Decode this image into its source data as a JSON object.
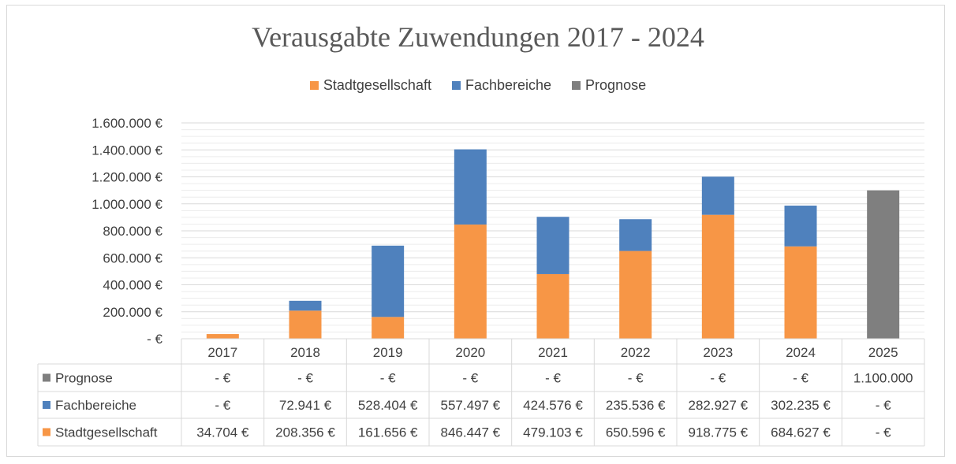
{
  "chart_data": {
    "type": "bar",
    "stacked": true,
    "title": "Verausgabte Zuwendungen 2017 - 2024",
    "categories": [
      "2017",
      "2018",
      "2019",
      "2020",
      "2021",
      "2022",
      "2023",
      "2024",
      "2025"
    ],
    "series": [
      {
        "name": "Stadtgesellschaft",
        "color": "#f79646",
        "values": [
          34704,
          208356,
          161656,
          846447,
          479103,
          650596,
          918775,
          684627,
          0
        ],
        "table": [
          "34.704 €",
          "208.356 €",
          "161.656 €",
          "846.447 €",
          "479.103 €",
          "650.596 €",
          "918.775 €",
          "684.627 €",
          "- €"
        ]
      },
      {
        "name": "Fachbereiche",
        "color": "#4f81bd",
        "values": [
          0,
          72941,
          528404,
          557497,
          424576,
          235536,
          282927,
          302235,
          0
        ],
        "table": [
          "- €",
          "72.941 €",
          "528.404 €",
          "557.497 €",
          "424.576 €",
          "235.536 €",
          "282.927 €",
          "302.235 €",
          "- €"
        ]
      },
      {
        "name": "Prognose",
        "color": "#7f7f7f",
        "values": [
          0,
          0,
          0,
          0,
          0,
          0,
          0,
          0,
          1100000
        ],
        "table": [
          "- €",
          "- €",
          "- €",
          "- €",
          "- €",
          "- €",
          "- €",
          "- €",
          "1.100.000"
        ]
      }
    ],
    "ylim": [
      0,
      1600000
    ],
    "yticks": [
      0,
      200000,
      400000,
      600000,
      800000,
      1000000,
      1200000,
      1400000,
      1600000
    ],
    "ytick_labels": [
      "- €",
      "200.000 €",
      "400.000 €",
      "600.000 €",
      "800.000 €",
      "1.000.000 €",
      "1.200.000 €",
      "1.400.000 €",
      "1.600.000 €"
    ],
    "minor_grid_step": 50000,
    "grid": true,
    "legend": "top",
    "data_table": true,
    "table_row_order": [
      "Prognose",
      "Fachbereiche",
      "Stadtgesellschaft"
    ]
  }
}
